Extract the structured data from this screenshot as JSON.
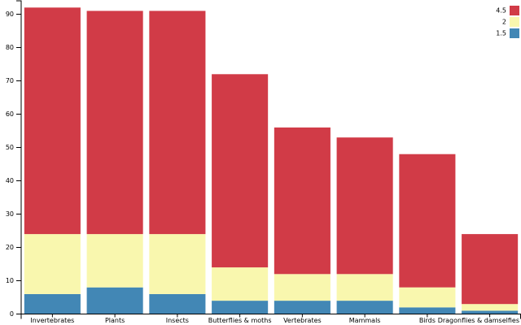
{
  "chart_data": {
    "type": "bar",
    "stacked": true,
    "categories": [
      "Invertebrates",
      "Plants",
      "Insects",
      "Butterflies & moths",
      "Vertebrates",
      "Mammals",
      "Birds",
      "Dragonflies & damselfies"
    ],
    "series": [
      {
        "name": "1.5",
        "values": [
          6,
          8,
          6,
          4,
          4,
          4,
          2,
          1
        ],
        "color": "#4287b5"
      },
      {
        "name": "2",
        "values": [
          18,
          16,
          18,
          10,
          8,
          8,
          6,
          2
        ],
        "color": "#f9f7ae"
      },
      {
        "name": "4.5",
        "values": [
          68,
          67,
          67,
          58,
          44,
          41,
          40,
          21
        ],
        "color": "#d13b47"
      }
    ],
    "y_ticks": [
      0,
      10,
      20,
      30,
      40,
      50,
      60,
      70,
      80,
      90
    ],
    "ylim": [
      0,
      94
    ],
    "grid": false,
    "legend": {
      "position": "top-right",
      "order": [
        "4.5",
        "2",
        "1.5"
      ]
    }
  }
}
